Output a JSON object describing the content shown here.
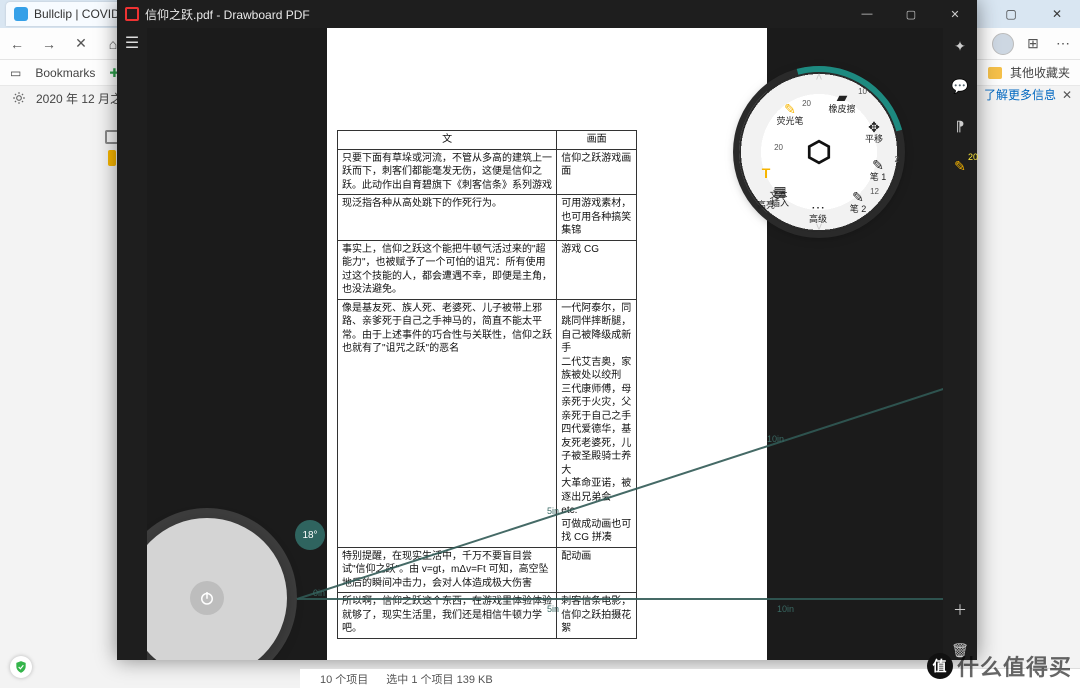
{
  "browser": {
    "tab_title": "Bullclip | COVID-19: D",
    "nav": {
      "back": "←",
      "forward": "→",
      "stop": "✕",
      "home": "⌂"
    },
    "ext": "⋯",
    "bookmarks_label": "Bookmarks",
    "add_label": "Add",
    "other_folder": "其他收藏夹",
    "page_strip": "2020 年 12 月之后",
    "info_link": "了解更多信息",
    "info_close": "✕",
    "win": {
      "min": "—",
      "max": "▢",
      "close": "✕"
    }
  },
  "drawboard": {
    "title": "信仰之跃.pdf - Drawboard PDF",
    "win": {
      "min": "—",
      "max": "▢",
      "close": "✕"
    },
    "hamburger": "☰",
    "right_rail": {
      "sparkle": "✦",
      "chat": "💬",
      "picker": "⁋",
      "pen": "✎",
      "pen_badge": "20",
      "plus": "＋",
      "trash": "🗑"
    },
    "angle": "18°",
    "ruler": {
      "h_5": "5in",
      "h_10": "10in",
      "d_5": "5in",
      "d_10": "10in",
      "d_0": "0in"
    },
    "status": {
      "items": "10 个项目",
      "selection": "选中 1 个项目  139 KB"
    }
  },
  "table": {
    "headers": [
      "文",
      "画面"
    ],
    "rows": [
      [
        "只要下面有草垛或河流，不管从多高的建筑上一跃而下，刺客们都能毫发无伤，这便是信仰之跃。此动作出自育碧旗下《刺客信条》系列游戏",
        "信仰之跃游戏画面"
      ],
      [
        "现泛指各种从高处跳下的作死行为。",
        "可用游戏素材，也可用各种搞笑集锦"
      ],
      [
        "事实上，信仰之跃这个能把牛顿气活过来的\"超能力\"，也被赋予了一个可怕的诅咒：所有使用过这个技能的人，都会遭遇不幸，即便是主角，也没法避免。",
        "游戏 CG"
      ],
      [
        "像是基友死、族人死、老婆死、儿子被带上邪路、亲爹死于自己之手神马的，简直不能太平常。由于上述事件的巧合性与关联性，信仰之跃也就有了\"诅咒之跃\"的恶名",
        "一代阿泰尔，同跳同伴摔断腿，自己被降级成新手\n二代艾吉奥，家族被处以绞刑\n三代康师傅，母亲死于火灾，父亲死于自己之手\n四代爱德华，基友死老婆死，儿子被圣殿骑士养大\n大革命亚诺，被逐出兄弟会\netc.\n可做成动画也可找 CG 拼凑"
      ],
      [
        "特别提醒，在现实生活中，千万不要盲目尝试\"信仰之跃\"。由 v=gt，mΔv=Ft 可知，高空坠地后的瞬间冲击力，会对人体造成极大伤害",
        "配动画"
      ],
      [
        "所以啊，信仰之跃这个东西，在游戏里体验体验就够了，现实生活里，我们还是相信牛顿力学吧。",
        "刺客信条电影，信仰之跃拍摄花絮"
      ]
    ]
  },
  "wheel": {
    "items": {
      "eraser": {
        "label": "橡皮擦",
        "icon": "▰",
        "badge": "10"
      },
      "pan": {
        "label": "平移",
        "icon": "✥"
      },
      "pen1": {
        "label": "笔 1",
        "icon": "✎",
        "badge": "2"
      },
      "pen2": {
        "label": "笔 2",
        "icon": "✎",
        "badge": "12"
      },
      "adv": {
        "label": "高级",
        "icon": "⋯"
      },
      "insert": {
        "label": "插入",
        "icon": "▦"
      },
      "text": {
        "label": "文本\n高亮",
        "icon": "T",
        "badge": "20"
      },
      "hl": {
        "label": "荧光笔",
        "icon": "✎",
        "badge": "20"
      }
    },
    "arrows": {
      "up": "˄",
      "down": "˅"
    }
  },
  "watermark": {
    "coin": "值",
    "text": "什么值得买"
  }
}
